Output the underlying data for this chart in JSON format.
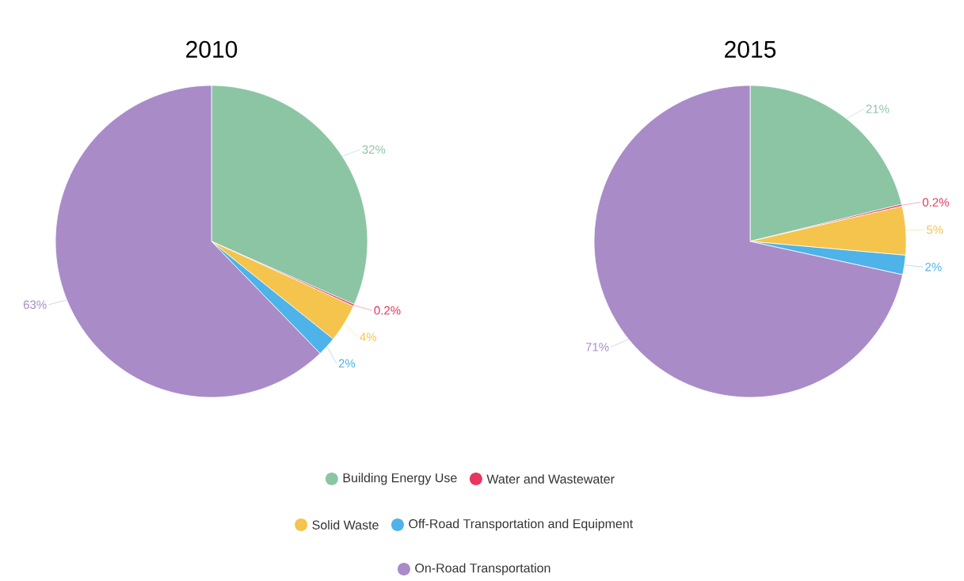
{
  "chart_data": [
    {
      "type": "pie",
      "title": "2010",
      "categories": [
        "Building Energy Use",
        "Water and Wastewater",
        "Solid Waste",
        "Off-Road Transportation and Equipment",
        "On-Road Transportation"
      ],
      "values": [
        32,
        0.2,
        4,
        2,
        63
      ],
      "value_labels": [
        "32%",
        "0.2%",
        "4%",
        "2%",
        "63%"
      ],
      "colors": [
        "#8cc5a4",
        "#e8365d",
        "#f4c44c",
        "#4db3e8",
        "#a98bc8"
      ],
      "legend": "bottom"
    },
    {
      "type": "pie",
      "title": "2015",
      "categories": [
        null,
        null,
        null,
        null,
        null
      ],
      "values": [
        21,
        0.2,
        5,
        2,
        71
      ],
      "value_labels": [
        "21%",
        "0.2%",
        "5%",
        "2%",
        "71%"
      ],
      "colors": [
        "#8cc5a4",
        "#e8365d",
        "#f4c44c",
        "#4db3e8",
        "#a98bc8"
      ]
    }
  ]
}
